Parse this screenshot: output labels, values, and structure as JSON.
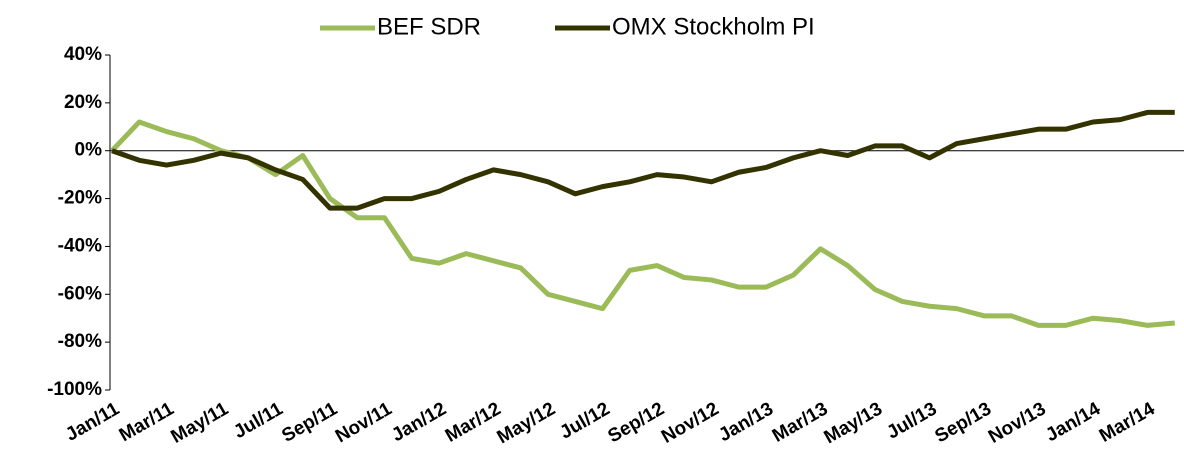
{
  "chart_data": {
    "type": "line",
    "categories": [
      "Jan/11",
      null,
      "Mar/11",
      null,
      "May/11",
      null,
      "Jul/11",
      null,
      "Sep/11",
      null,
      "Nov/11",
      null,
      "Jan/12",
      null,
      "Mar/12",
      null,
      "May/12",
      null,
      "Jul/12",
      null,
      "Sep/12",
      null,
      "Nov/12",
      null,
      "Jan/13",
      null,
      "Mar/13",
      null,
      "May/13",
      null,
      "Jul/13",
      null,
      "Sep/13",
      null,
      "Nov/13",
      null,
      "Jan/14",
      null,
      "Mar/14",
      null
    ],
    "series": [
      {
        "name": "BEF SDR",
        "color": "#9bbb59",
        "values": [
          0,
          12,
          8,
          5,
          0,
          -3,
          -10,
          -2,
          -20,
          -28,
          -28,
          -45,
          -47,
          -43,
          -46,
          -49,
          -60,
          -63,
          -66,
          -50,
          -48,
          -53,
          -54,
          -57,
          -57,
          -52,
          -41,
          -48,
          -58,
          -63,
          -65,
          -66,
          -69,
          -69,
          -73,
          -73,
          -70,
          -71,
          -73,
          -72
        ]
      },
      {
        "name": "OMX Stockholm PI",
        "color": "#333300",
        "values": [
          0,
          -4,
          -6,
          -4,
          -1,
          -3,
          -8,
          -12,
          -24,
          -24,
          -20,
          -20,
          -17,
          -12,
          -8,
          -10,
          -13,
          -18,
          -15,
          -13,
          -10,
          -11,
          -13,
          -9,
          -7,
          -3,
          0,
          -2,
          2,
          2,
          -3,
          3,
          5,
          7,
          9,
          9,
          12,
          13,
          16,
          16
        ]
      }
    ],
    "ylim": [
      -100,
      40
    ],
    "yticks": [
      {
        "value": -100,
        "label": "-100%"
      },
      {
        "value": -80,
        "label": "-80%"
      },
      {
        "value": -60,
        "label": "-60%"
      },
      {
        "value": -40,
        "label": "-40%"
      },
      {
        "value": -20,
        "label": "-20%"
      },
      {
        "value": 0,
        "label": "0%"
      },
      {
        "value": 20,
        "label": "20%"
      },
      {
        "value": 40,
        "label": "40%"
      }
    ],
    "legend": "top",
    "grid": false
  }
}
